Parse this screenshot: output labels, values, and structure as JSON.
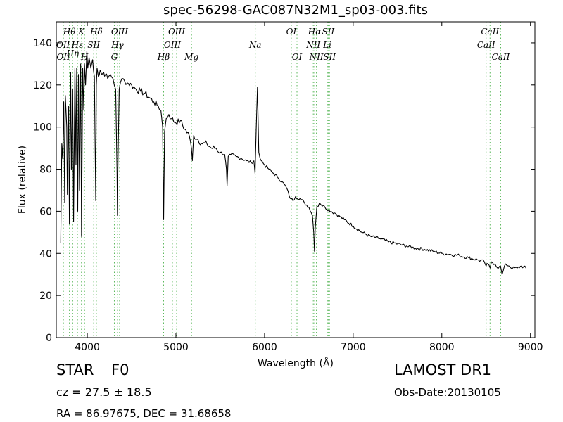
{
  "title": "spec-56298-GAC087N32M1_sp03-003.fits",
  "info": {
    "object_class": "STAR",
    "subclass": "F0",
    "survey": "LAMOST DR1",
    "redshift": "cz = 27.5  ± 18.5",
    "obs_date": "Obs-Date:20130105",
    "coords": "RA = 86.97675, DEC = 31.68658"
  },
  "chart_data": {
    "type": "line",
    "title": "spec-56298-GAC087N32M1_sp03-003.fits",
    "xlabel": "Wavelength (Å)",
    "ylabel": "Flux (relative)",
    "xlim": [
      3650,
      9050
    ],
    "ylim": [
      0,
      150
    ],
    "xticks": [
      4000,
      5000,
      6000,
      7000,
      8000,
      9000
    ],
    "yticks": [
      0,
      20,
      40,
      60,
      80,
      100,
      120,
      140
    ],
    "grid": false,
    "line_color": "#000000",
    "marker_color": "#5cb85c",
    "spectrum": {
      "x": [
        3700,
        3712,
        3722,
        3734,
        3745,
        3752,
        3768,
        3775,
        3790,
        3798,
        3812,
        3820,
        3835,
        3845,
        3860,
        3872,
        3880,
        3892,
        3900,
        3912,
        3925,
        3935,
        3948,
        3960,
        3968,
        3980,
        3995,
        4005,
        4020,
        4040,
        4060,
        4080,
        4095,
        4102,
        4110,
        4125,
        4145,
        4165,
        4185,
        4205,
        4230,
        4260,
        4290,
        4320,
        4335,
        4340,
        4345,
        4360,
        4390,
        4420,
        4450,
        4500,
        4550,
        4600,
        4650,
        4700,
        4750,
        4800,
        4830,
        4850,
        4861,
        4872,
        4890,
        4920,
        4950,
        5000,
        5050,
        5100,
        5150,
        5175,
        5185,
        5200,
        5250,
        5300,
        5350,
        5400,
        5450,
        5500,
        5550,
        5570,
        5577,
        5590,
        5620,
        5680,
        5740,
        5800,
        5850,
        5880,
        5893,
        5905,
        5920,
        5935,
        5950,
        6000,
        6050,
        6100,
        6150,
        6200,
        6250,
        6280,
        6300,
        6320,
        6350,
        6400,
        6450,
        6500,
        6540,
        6555,
        6563,
        6572,
        6590,
        6620,
        6680,
        6750,
        6800,
        6900,
        7000,
        7100,
        7200,
        7300,
        7400,
        7500,
        7600,
        7700,
        7800,
        7900,
        8000,
        8100,
        8200,
        8300,
        8400,
        8480,
        8500,
        8520,
        8545,
        8560,
        8600,
        8640,
        8662,
        8680,
        8720,
        8760,
        8800,
        8850,
        8900,
        8950
      ],
      "y": [
        45,
        92,
        85,
        112,
        64,
        115,
        100,
        68,
        110,
        54,
        126,
        80,
        118,
        55,
        128,
        82,
        128,
        60,
        125,
        70,
        130,
        48,
        128,
        108,
        130,
        120,
        136,
        128,
        133,
        128,
        132,
        124,
        65,
        120,
        128,
        124,
        127,
        125,
        126,
        125,
        123,
        125,
        123,
        118,
        80,
        58,
        80,
        118,
        123,
        122,
        121,
        120,
        118,
        117,
        116,
        114,
        112,
        110,
        108,
        100,
        56,
        98,
        104,
        106,
        104,
        102,
        103,
        99,
        96,
        90,
        84,
        96,
        94,
        92,
        92,
        90,
        90,
        88,
        87,
        80,
        72,
        86,
        87,
        86,
        85,
        84,
        83,
        84,
        78,
        98,
        119,
        88,
        85,
        82,
        80,
        78,
        76,
        74,
        71,
        67,
        66,
        65,
        67,
        66,
        64,
        62,
        58,
        50,
        41,
        52,
        62,
        64,
        62,
        60,
        59,
        56,
        53,
        50,
        48,
        47,
        45.5,
        44.5,
        43.5,
        42.5,
        42,
        41,
        40,
        39.5,
        39,
        38,
        37,
        36,
        34,
        35,
        33,
        36,
        35,
        33,
        34,
        30,
        35,
        34,
        33,
        33,
        34,
        33
      ]
    },
    "line_markers": [
      {
        "name": "OII",
        "x": 3727,
        "row": 1
      },
      {
        "name": "OII",
        "x": 3730,
        "row": 2
      },
      {
        "name": "Hθ",
        "x": 3798,
        "row": 0
      },
      {
        "name": "Hη",
        "x": 3835,
        "row": 1.7
      },
      {
        "name": "Hε",
        "x": 3889,
        "row": 1
      },
      {
        "name": "K",
        "x": 3934,
        "row": 0
      },
      {
        "name": "H",
        "x": 3969,
        "row": 2
      },
      {
        "name": "SII",
        "x": 4072,
        "row": 1
      },
      {
        "name": "Hδ",
        "x": 4102,
        "row": 0
      },
      {
        "name": "G",
        "x": 4305,
        "row": 2
      },
      {
        "name": "Hγ",
        "x": 4341,
        "row": 1
      },
      {
        "name": "OIII",
        "x": 4364,
        "row": 0
      },
      {
        "name": "Hβ",
        "x": 4861,
        "row": 2
      },
      {
        "name": "OIII",
        "x": 4960,
        "row": 1
      },
      {
        "name": "OIII",
        "x": 5008,
        "row": 0
      },
      {
        "name": "Mg",
        "x": 5176,
        "row": 2
      },
      {
        "name": "Na",
        "x": 5895,
        "row": 1
      },
      {
        "name": "OI",
        "x": 6302,
        "row": 0
      },
      {
        "name": "OI",
        "x": 6366,
        "row": 2
      },
      {
        "name": "NII",
        "x": 6550,
        "row": 1
      },
      {
        "name": "NII",
        "x": 6585,
        "row": 2
      },
      {
        "name": "Hα",
        "x": 6565,
        "row": 0
      },
      {
        "name": "SII",
        "x": 6718,
        "row": 0
      },
      {
        "name": "Li",
        "x": 6708,
        "row": 1
      },
      {
        "name": "SII",
        "x": 6733,
        "row": 2
      },
      {
        "name": "CaII",
        "x": 8500,
        "row": 1
      },
      {
        "name": "CaII",
        "x": 8544,
        "row": 0
      },
      {
        "name": "CaII",
        "x": 8665,
        "row": 2
      }
    ]
  }
}
